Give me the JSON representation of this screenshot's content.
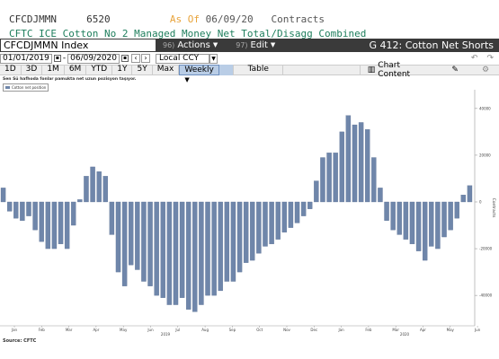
{
  "header": {
    "ticker": "CFCDJMMN",
    "code": "6520",
    "asof_label": "As Of",
    "asof_date": "06/09/20",
    "unit": "Contracts",
    "description": "CFTC ICE Cotton No 2 Managed Money Net Total/Disagg Combined"
  },
  "toolbar": {
    "security": "CFCDJMMN Index",
    "actions_num": "96)",
    "actions_label": "Actions",
    "edit_num": "97)",
    "edit_label": "Edit",
    "chart_title": "G 412: Cotton Net Shorts"
  },
  "dates": {
    "start": "01/01/2019",
    "end": "06/09/2020",
    "currency": "Local CCY"
  },
  "periods": [
    "1D",
    "3D",
    "1M",
    "6M",
    "YTD",
    "1Y",
    "5Y",
    "Max"
  ],
  "frequency": "Weekly",
  "table_label": "Table",
  "chart_content_label": "Chart Content",
  "subtitle": "Sen Sü hafhoda fonlar pamukta net uzun pozisyon taşıyor.",
  "legend_label": "Cotton net position",
  "source": "Source: CFTC",
  "colors": {
    "bar": "#6f86aa",
    "bar_stroke": "#5a6f92"
  },
  "chart_data": {
    "type": "bar",
    "ylabel": "Contracts",
    "ylim": [
      -53000,
      48000
    ],
    "yticks": [
      -40000,
      -20000,
      0,
      20000,
      40000
    ],
    "ytick_labels": [
      "-40000",
      "-20000",
      "0",
      "20000",
      "40000"
    ],
    "months": [
      "Jan",
      "Feb",
      "Mar",
      "Apr",
      "May",
      "Jun",
      "Jul",
      "Aug",
      "Sep",
      "Oct",
      "Nov",
      "Dec",
      "Jan",
      "Feb",
      "Mar",
      "Apr",
      "May",
      "Jun"
    ],
    "years": [
      "2019",
      "2020"
    ],
    "values": [
      6000,
      -4000,
      -7000,
      -8000,
      -6000,
      -12000,
      -17000,
      -20000,
      -20000,
      -18000,
      -20000,
      -10000,
      1000,
      11000,
      15000,
      13000,
      11000,
      -14000,
      -30000,
      -36000,
      -27000,
      -29000,
      -34000,
      -36000,
      -40000,
      -41000,
      -44000,
      -44000,
      -41000,
      -46000,
      -47000,
      -44000,
      -40000,
      -40000,
      -38000,
      -34000,
      -34000,
      -30000,
      -26000,
      -25000,
      -22000,
      -19000,
      -18000,
      -16000,
      -13000,
      -11000,
      -9000,
      -6000,
      -3000,
      9000,
      19000,
      21000,
      21000,
      30000,
      37000,
      33000,
      34000,
      31000,
      19000,
      6000,
      -8000,
      -12000,
      -14000,
      -16000,
      -18000,
      -21000,
      -25000,
      -19000,
      -20000,
      -15000,
      -12000,
      -7000,
      3000,
      7000
    ]
  }
}
